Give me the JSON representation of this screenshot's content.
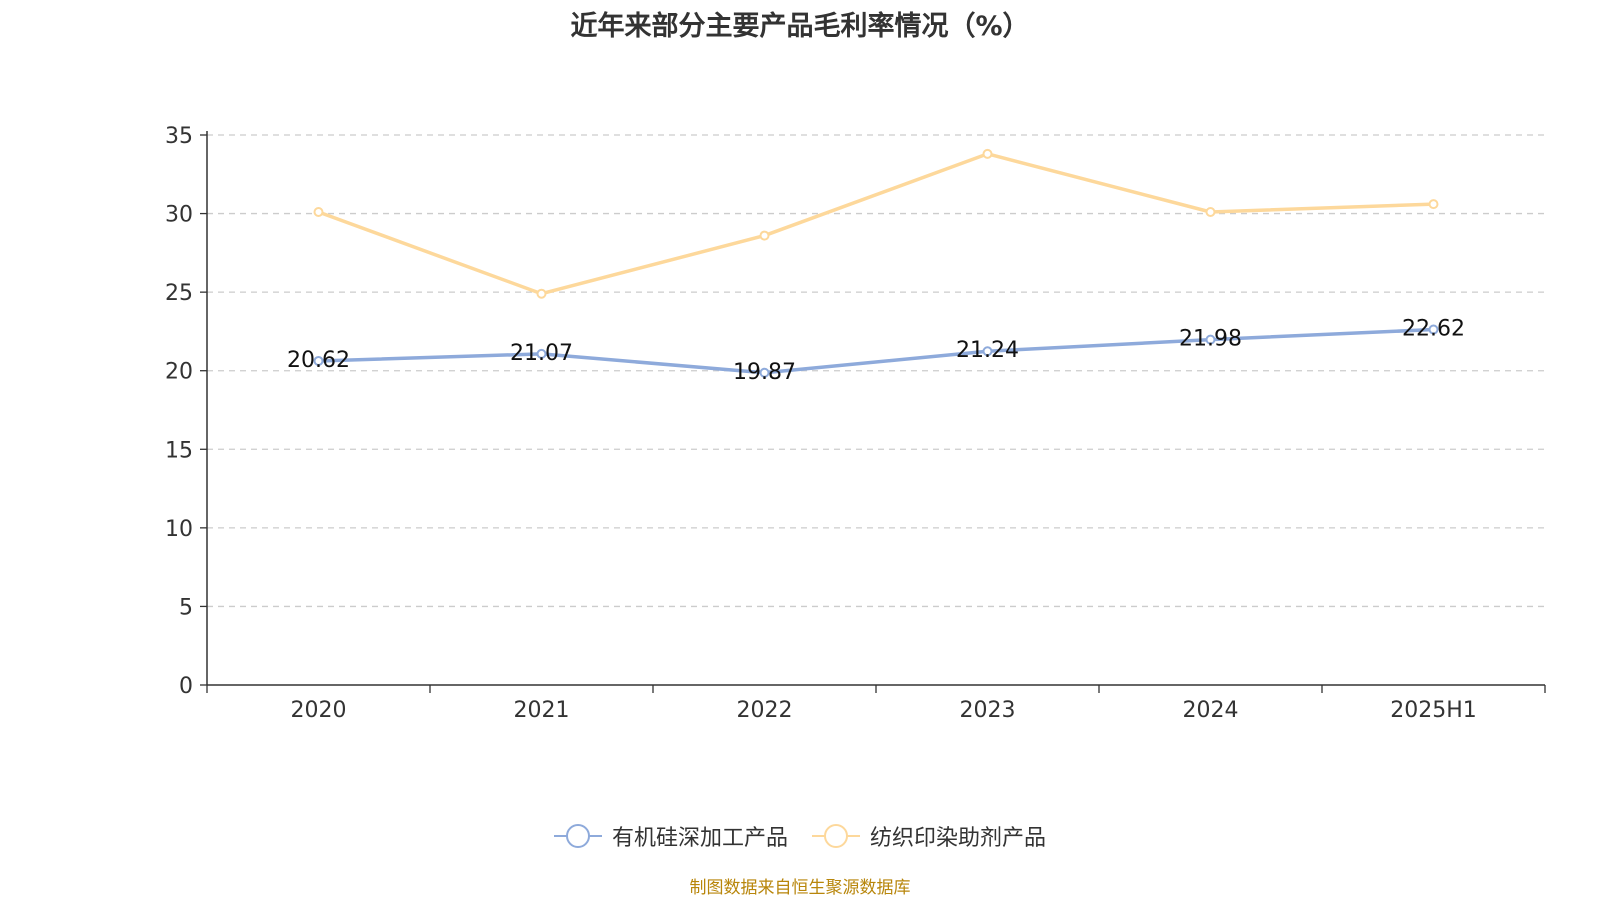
{
  "chart_data": {
    "type": "line",
    "title": "近年来部分主要产品毛利率情况（%）",
    "categories": [
      "2020",
      "2021",
      "2022",
      "2023",
      "2024",
      "2025H1"
    ],
    "ylim": [
      0,
      35
    ],
    "yticks": [
      0,
      5,
      10,
      15,
      20,
      25,
      30,
      35
    ],
    "grid": true,
    "legend_position": "bottom",
    "series": [
      {
        "name": "有机硅深加工产品",
        "color": "#8eaadb",
        "values": [
          20.62,
          21.07,
          19.87,
          21.24,
          21.98,
          22.62
        ],
        "labels": [
          "20.62",
          "21.07",
          "19.87",
          "21.24",
          "21.98",
          "22.62"
        ]
      },
      {
        "name": "纺织印染助剂产品",
        "color": "#fdd89b",
        "values": [
          30.1,
          24.9,
          28.6,
          33.8,
          30.1,
          30.6
        ]
      }
    ]
  },
  "source_note": "制图数据来自恒生聚源数据库"
}
